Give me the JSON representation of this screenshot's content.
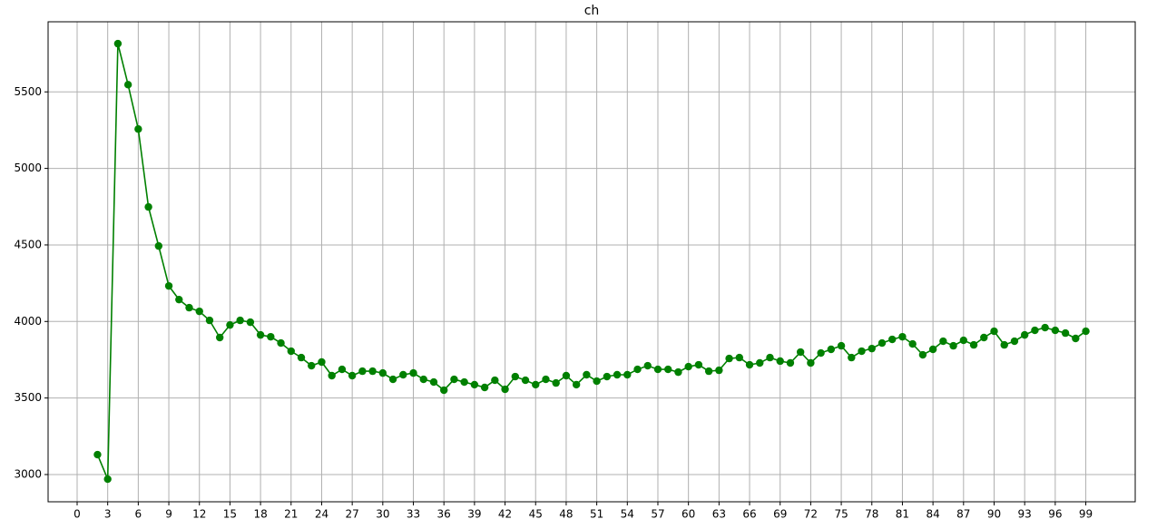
{
  "chart_data": {
    "type": "line",
    "title": "ch",
    "x": [
      2,
      3,
      4,
      5,
      6,
      7,
      8,
      9,
      10,
      11,
      12,
      13,
      14,
      15,
      16,
      17,
      18,
      19,
      20,
      21,
      22,
      23,
      24,
      25,
      26,
      27,
      28,
      29,
      30,
      31,
      32,
      33,
      34,
      35,
      36,
      37,
      38,
      39,
      40,
      41,
      42,
      43,
      44,
      45,
      46,
      47,
      48,
      49,
      50,
      51,
      52,
      53,
      54,
      55,
      56,
      57,
      58,
      59,
      60,
      61,
      62,
      63,
      64,
      65,
      66,
      67,
      68,
      69,
      70,
      71,
      72,
      73,
      74,
      75,
      76,
      77,
      78,
      79,
      80,
      81,
      82,
      83,
      84,
      85,
      86,
      87,
      88,
      89,
      90,
      91,
      92,
      93,
      94,
      95,
      96,
      97,
      98,
      99
    ],
    "series": [
      {
        "color": "#008000",
        "values": [
          3130,
          2970,
          5815,
          5547,
          5257,
          4748,
          4493,
          4232,
          4143,
          4090,
          4066,
          4007,
          3895,
          3977,
          4007,
          3995,
          3912,
          3900,
          3859,
          3806,
          3764,
          3711,
          3735,
          3646,
          3687,
          3646,
          3675,
          3675,
          3663,
          3622,
          3652,
          3663,
          3622,
          3604,
          3551,
          3622,
          3604,
          3587,
          3569,
          3616,
          3557,
          3640,
          3616,
          3587,
          3622,
          3598,
          3646,
          3587,
          3652,
          3610,
          3640,
          3652,
          3652,
          3687,
          3711,
          3687,
          3687,
          3669,
          3705,
          3717,
          3675,
          3681,
          3758,
          3764,
          3717,
          3729,
          3764,
          3741,
          3729,
          3800,
          3729,
          3794,
          3818,
          3841,
          3764,
          3806,
          3823,
          3859,
          3883,
          3900,
          3853,
          3782,
          3818,
          3871,
          3841,
          3877,
          3847,
          3895,
          3936,
          3847,
          3871,
          3912,
          3942,
          3960,
          3942,
          3924,
          3889,
          3936
        ]
      }
    ],
    "xlim": [
      -2.85,
      103.85
    ],
    "ylim": [
      2822,
      5958
    ],
    "xticks": [
      0,
      3,
      6,
      9,
      12,
      15,
      18,
      21,
      24,
      27,
      30,
      33,
      36,
      39,
      42,
      45,
      48,
      51,
      54,
      57,
      60,
      63,
      66,
      69,
      72,
      75,
      78,
      81,
      84,
      87,
      90,
      93,
      96,
      99
    ],
    "yticks": [
      3000,
      3500,
      4000,
      4500,
      5000,
      5500
    ],
    "grid": true
  }
}
